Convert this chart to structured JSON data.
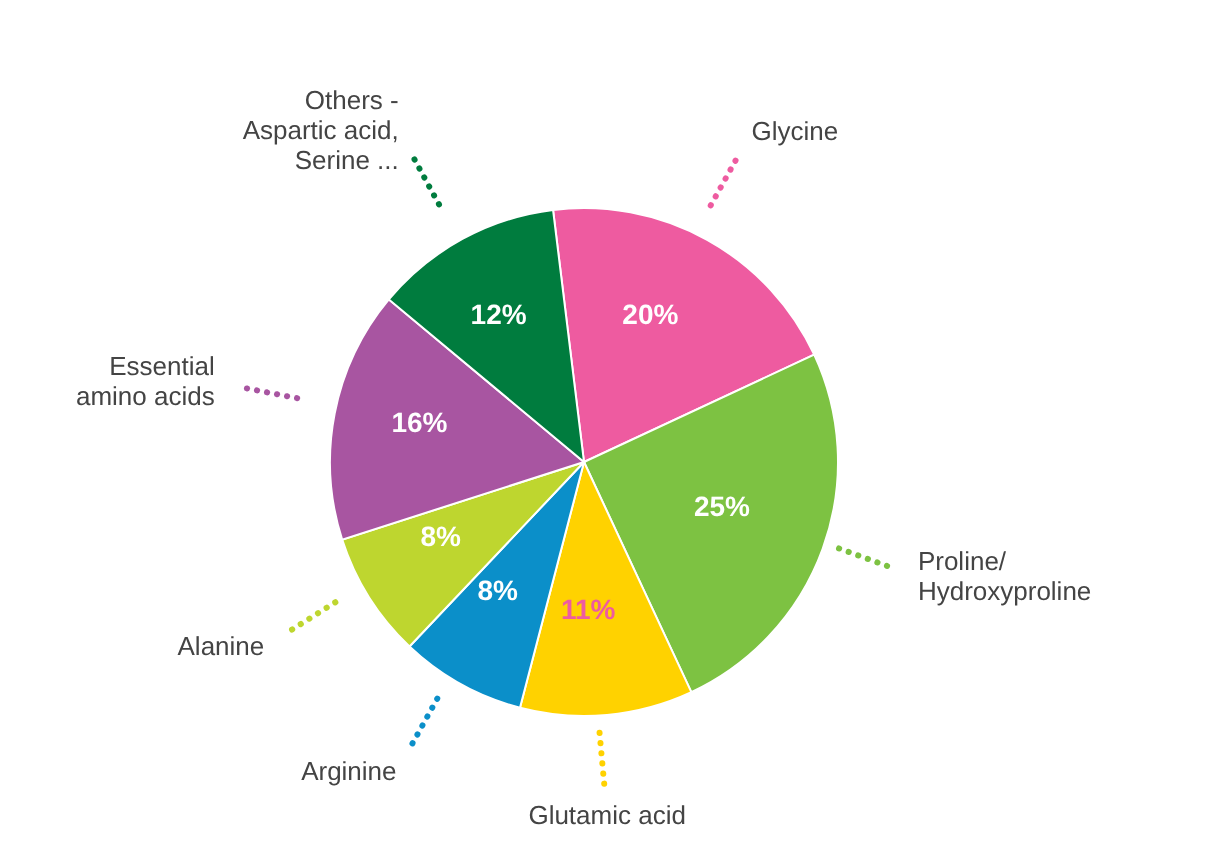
{
  "chart_data": {
    "type": "pie",
    "categories": [
      "Glycine",
      "Proline/ Hydroxyproline",
      "Glutamic acid",
      "Arginine",
      "Alanine",
      "Essential amino acids",
      "Others - Aspartic acid, Serine ..."
    ],
    "values": [
      20,
      25,
      11,
      8,
      8,
      16,
      12
    ],
    "value_labels": [
      "20%",
      "25%",
      "11%",
      "8%",
      "8%",
      "16%",
      "12%"
    ],
    "colors": [
      "#ee5ba0",
      "#7dc242",
      "#ffd200",
      "#0b8fc9",
      "#bed62f",
      "#a855a1",
      "#007c3e"
    ]
  }
}
